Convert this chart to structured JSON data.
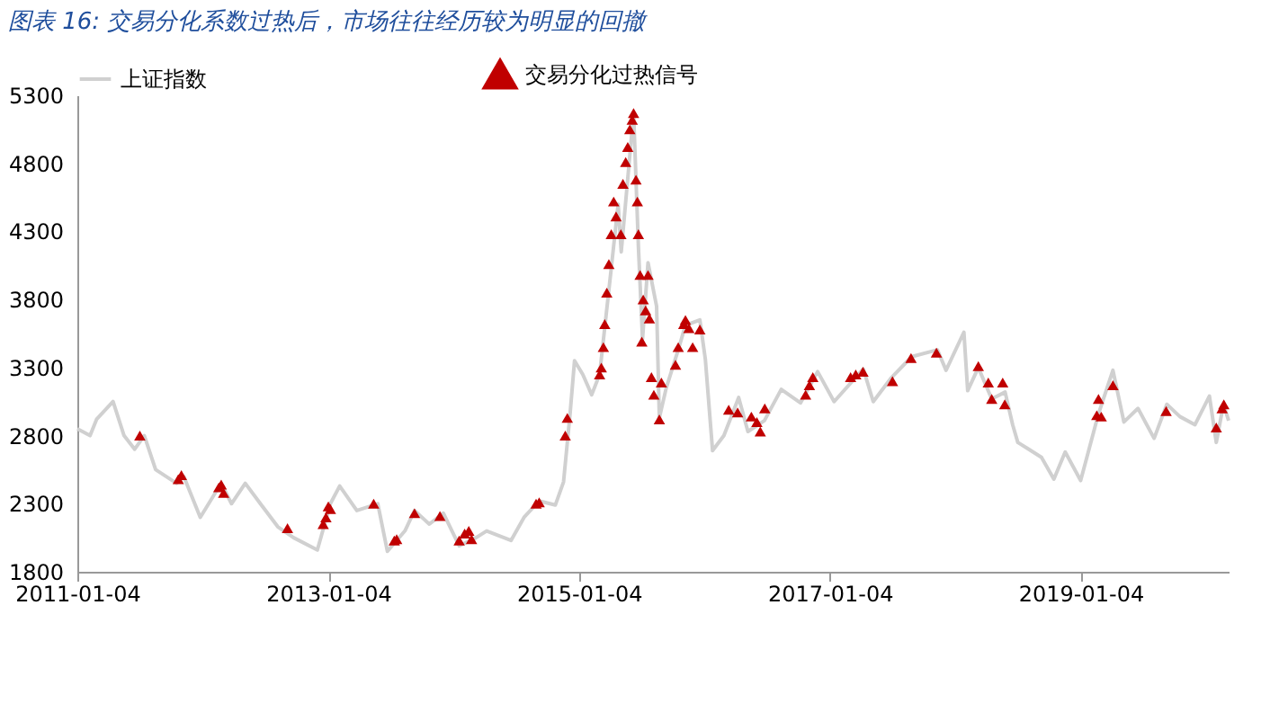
{
  "chart_data": {
    "type": "line",
    "title": "图表 16:  交易分化系数过热后，市场往往经历较为明显的回撤",
    "xlim": [
      "2011-01-04",
      "2020-03-10"
    ],
    "xticks": [
      "2011-01-04",
      "2013-01-04",
      "2015-01-04",
      "2017-01-04",
      "2019-01-04"
    ],
    "ylim": [
      1800,
      5300
    ],
    "yticks": [
      1800,
      2300,
      2800,
      3300,
      3800,
      4300,
      4800,
      5300
    ],
    "grid": false,
    "legend": "top",
    "line_style": "solid",
    "series": [
      {
        "name": "上证指数",
        "color": "#d0d0d0",
        "x": [
          "2011-01-04",
          "2011-02-10",
          "2011-03-01",
          "2011-04-18",
          "2011-05-20",
          "2011-06-20",
          "2011-07-18",
          "2011-08-20",
          "2011-10-20",
          "2011-11-10",
          "2011-12-28",
          "2012-02-27",
          "2012-03-28",
          "2012-05-07",
          "2012-06-20",
          "2012-08-10",
          "2012-09-25",
          "2012-12-03",
          "2013-01-10",
          "2013-02-06",
          "2013-03-28",
          "2013-05-28",
          "2013-06-25",
          "2013-08-15",
          "2013-09-12",
          "2013-10-25",
          "2013-12-05",
          "2014-01-20",
          "2014-03-10",
          "2014-04-10",
          "2014-06-20",
          "2014-07-28",
          "2014-09-10",
          "2014-10-27",
          "2014-11-20",
          "2014-12-09",
          "2014-12-22",
          "2015-01-15",
          "2015-02-10",
          "2015-03-05",
          "2015-04-08",
          "2015-04-28",
          "2015-05-07",
          "2015-06-12",
          "2015-06-26",
          "2015-07-08",
          "2015-07-24",
          "2015-08-18",
          "2015-08-26",
          "2015-09-15",
          "2015-10-20",
          "2015-11-10",
          "2015-12-22",
          "2016-01-07",
          "2016-01-28",
          "2016-03-01",
          "2016-04-13",
          "2016-05-10",
          "2016-06-27",
          "2016-08-15",
          "2016-10-10",
          "2016-11-29",
          "2017-01-16",
          "2017-04-11",
          "2017-05-10",
          "2017-06-30",
          "2017-08-30",
          "2017-11-13",
          "2017-12-08",
          "2018-01-29",
          "2018-02-09",
          "2018-03-12",
          "2018-04-20",
          "2018-05-29",
          "2018-06-20",
          "2018-07-05",
          "2018-08-06",
          "2018-09-12",
          "2018-10-18",
          "2018-11-20",
          "2019-01-04",
          "2019-02-25",
          "2019-04-08",
          "2019-05-10",
          "2019-06-20",
          "2019-08-06",
          "2019-09-12",
          "2019-10-20",
          "2019-12-03",
          "2020-01-14",
          "2020-02-03",
          "2020-02-24",
          "2020-03-10"
        ],
        "values": [
          2850,
          2800,
          2920,
          3050,
          2800,
          2700,
          2800,
          2550,
          2450,
          2500,
          2200,
          2450,
          2300,
          2450,
          2300,
          2130,
          2050,
          1960,
          2300,
          2430,
          2250,
          2300,
          1950,
          2100,
          2250,
          2150,
          2230,
          1990,
          2050,
          2100,
          2030,
          2200,
          2320,
          2290,
          2460,
          2960,
          3350,
          3250,
          3100,
          3250,
          4030,
          4500,
          4150,
          5170,
          4190,
          3510,
          4070,
          3750,
          2930,
          3150,
          3430,
          3610,
          3650,
          3360,
          2690,
          2800,
          3080,
          2830,
          2910,
          3140,
          3040,
          3270,
          3050,
          3290,
          3050,
          3220,
          3380,
          3430,
          3280,
          3560,
          3130,
          3300,
          3070,
          3120,
          2880,
          2750,
          2700,
          2640,
          2480,
          2680,
          2470,
          2960,
          3280,
          2900,
          3000,
          2780,
          3030,
          2940,
          2880,
          3090,
          2750,
          3030,
          2910
        ]
      },
      {
        "name": "交易分化过热信号",
        "type": "scatter",
        "color": "#c00000",
        "marker": "triangle",
        "x": [
          "2011-07-05",
          "2011-10-25",
          "2011-11-03",
          "2012-02-20",
          "2012-02-27",
          "2012-03-05",
          "2012-09-07",
          "2012-12-20",
          "2012-12-28",
          "2013-01-04",
          "2013-01-10",
          "2013-05-16",
          "2013-07-15",
          "2013-07-22",
          "2013-09-12",
          "2013-11-25",
          "2014-01-20",
          "2014-02-05",
          "2014-02-17",
          "2014-02-25",
          "2014-09-01",
          "2014-09-10",
          "2014-11-25",
          "2014-12-01",
          "2015-03-05",
          "2015-03-10",
          "2015-03-16",
          "2015-03-20",
          "2015-03-26",
          "2015-04-01",
          "2015-04-08",
          "2015-04-15",
          "2015-04-22",
          "2015-05-06",
          "2015-05-12",
          "2015-05-20",
          "2015-05-26",
          "2015-06-01",
          "2015-06-08",
          "2015-06-12",
          "2015-06-19",
          "2015-06-23",
          "2015-06-26",
          "2015-07-01",
          "2015-07-06",
          "2015-07-10",
          "2015-07-17",
          "2015-07-24",
          "2015-07-28",
          "2015-08-03",
          "2015-08-10",
          "2015-08-26",
          "2015-09-01",
          "2015-10-12",
          "2015-10-20",
          "2015-11-05",
          "2015-11-10",
          "2015-11-20",
          "2015-12-01",
          "2015-12-22",
          "2016-03-15",
          "2016-04-10",
          "2016-05-20",
          "2016-06-05",
          "2016-06-15",
          "2016-06-28",
          "2016-10-25",
          "2016-11-05",
          "2016-11-15",
          "2017-03-05",
          "2017-03-20",
          "2017-04-10",
          "2017-07-05",
          "2017-08-28",
          "2017-11-10",
          "2018-03-12",
          "2018-04-10",
          "2018-04-20",
          "2018-05-22",
          "2018-05-28",
          "2019-02-20",
          "2019-02-25",
          "2019-03-05",
          "2019-04-08",
          "2019-09-10",
          "2020-02-03",
          "2020-02-20",
          "2020-02-25"
        ],
        "values": [
          2800,
          2480,
          2510,
          2420,
          2440,
          2380,
          2120,
          2150,
          2200,
          2280,
          2260,
          2300,
          2030,
          2040,
          2230,
          2210,
          2030,
          2080,
          2100,
          2040,
          2300,
          2310,
          2800,
          2930,
          3250,
          3300,
          3450,
          3620,
          3850,
          4060,
          4280,
          4520,
          4410,
          4280,
          4650,
          4810,
          4920,
          5050,
          5120,
          5170,
          4680,
          4520,
          4280,
          3980,
          3490,
          3800,
          3720,
          3980,
          3660,
          3230,
          3100,
          2920,
          3190,
          3320,
          3450,
          3620,
          3650,
          3590,
          3450,
          3580,
          2990,
          2970,
          2940,
          2900,
          2830,
          3000,
          3100,
          3170,
          3230,
          3230,
          3250,
          3270,
          3200,
          3370,
          3410,
          3310,
          3190,
          3070,
          3190,
          3030,
          2950,
          3070,
          2940,
          3170,
          2980,
          2860,
          3000,
          3030
        ]
      }
    ]
  }
}
